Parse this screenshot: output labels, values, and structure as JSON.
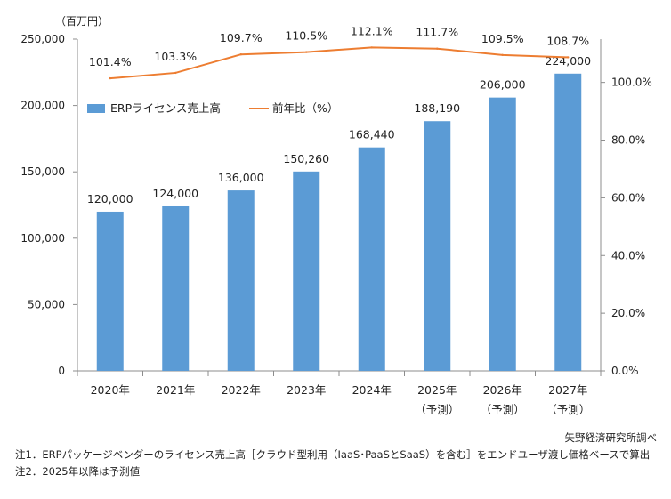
{
  "chart_data": {
    "type": "bar",
    "y_unit_label": "（百万円）",
    "categories": [
      "2020年",
      "2021年",
      "2022年",
      "2023年",
      "2024年",
      "2025年",
      "2026年",
      "2027年"
    ],
    "category_sublabels": [
      "",
      "",
      "",
      "",
      "",
      "（予測）",
      "（予測）",
      "（予測）"
    ],
    "series": [
      {
        "name": "ERPライセンス売上高",
        "type": "bar",
        "axis": "left",
        "color": "#5b9bd5",
        "values": [
          120000,
          124000,
          136000,
          150260,
          168440,
          188190,
          206000,
          224000
        ],
        "value_labels": [
          "120,000",
          "124,000",
          "136,000",
          "150,260",
          "168,440",
          "188,190",
          "206,000",
          "224,000"
        ]
      },
      {
        "name": "前年比（%）",
        "type": "line",
        "axis": "right",
        "color": "#ed7d31",
        "values": [
          101.4,
          103.3,
          109.7,
          110.5,
          112.1,
          111.7,
          109.5,
          108.7
        ],
        "value_labels": [
          "101.4%",
          "103.3%",
          "109.7%",
          "110.5%",
          "112.1%",
          "111.7%",
          "109.5%",
          "108.7%"
        ]
      }
    ],
    "y_left": {
      "min": 0,
      "max": 250000,
      "ticks": [
        0,
        50000,
        100000,
        150000,
        200000,
        250000
      ],
      "tick_labels": [
        "0",
        "50,000",
        "100,000",
        "150,000",
        "200,000",
        "250,000"
      ]
    },
    "y_right": {
      "min": 0,
      "max": 115,
      "ticks": [
        0,
        20,
        40,
        60,
        80,
        100
      ],
      "tick_labels": [
        "0.0%",
        "20.0%",
        "40.0%",
        "60.0%",
        "80.0%",
        "100.0%"
      ]
    },
    "legend_position": "upper-left",
    "grid": false
  },
  "source": "矢野経済研究所調べ",
  "notes": [
    "注1．ERPパッケージベンダーのライセンス売上高［クラウド型利用（IaaS･PaaSとSaaS）を含む］をエンドユーザ渡し価格ベースで算出",
    "注2．2025年以降は予測値"
  ]
}
